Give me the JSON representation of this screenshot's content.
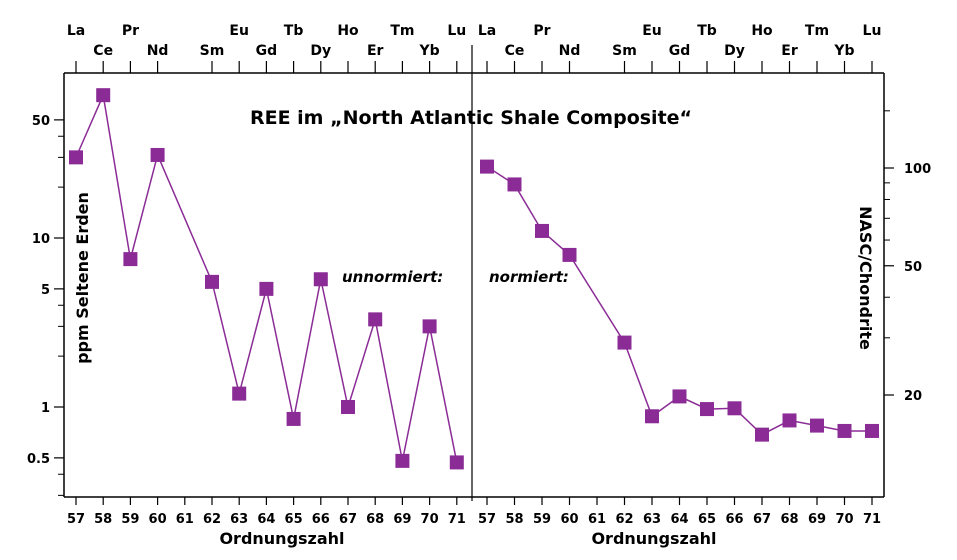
{
  "title": "REE im „North Atlantic Shale Composite“",
  "chart_data": [
    {
      "type": "line",
      "name": "left-panel",
      "annotation": "unnormiert:",
      "xlabel": "Ordnungszahl",
      "ylabel": "ppm Seltene Erden",
      "yscale": "log",
      "ylim": [
        0.25,
        100
      ],
      "yticks": [
        0.5,
        1,
        5,
        10,
        50
      ],
      "x_ticks": [
        "57",
        "58",
        "59",
        "60",
        "61",
        "62",
        "63",
        "64",
        "65",
        "66",
        "67",
        "68",
        "69",
        "70",
        "71"
      ],
      "element_labels": [
        "La",
        "Ce",
        "Pr",
        "Nd",
        "Sm",
        "Eu",
        "Gd",
        "Tb",
        "Dy",
        "Ho",
        "Er",
        "Tm",
        "Yb",
        "Lu"
      ],
      "element_z": [
        57,
        58,
        59,
        60,
        62,
        63,
        64,
        65,
        66,
        67,
        68,
        69,
        70,
        71
      ],
      "color": "#8b2c96",
      "points": [
        {
          "x": 57,
          "y": 30
        },
        {
          "x": 58,
          "y": 70
        },
        {
          "x": 59,
          "y": 7.5
        },
        {
          "x": 60,
          "y": 31
        },
        {
          "x": 62,
          "y": 5.5
        },
        {
          "x": 63,
          "y": 1.2
        },
        {
          "x": 64,
          "y": 5.0
        },
        {
          "x": 65,
          "y": 0.85
        },
        {
          "x": 66,
          "y": 5.7
        },
        {
          "x": 67,
          "y": 1.0
        },
        {
          "x": 68,
          "y": 3.3
        },
        {
          "x": 69,
          "y": 0.48
        },
        {
          "x": 70,
          "y": 3.0
        },
        {
          "x": 71,
          "y": 0.47
        }
      ]
    },
    {
      "type": "line",
      "name": "right-panel",
      "annotation": "normiert:",
      "xlabel": "Ordnungszahl",
      "ylabel": "NASC/Chondrite",
      "yscale": "log",
      "ylim": [
        10,
        200
      ],
      "yticks": [
        20,
        50,
        100
      ],
      "x_ticks": [
        "57",
        "58",
        "59",
        "60",
        "61",
        "62",
        "63",
        "64",
        "65",
        "66",
        "67",
        "68",
        "69",
        "70",
        "71"
      ],
      "element_labels": [
        "La",
        "Ce",
        "Pr",
        "Nd",
        "Sm",
        "Eu",
        "Gd",
        "Tb",
        "Dy",
        "Ho",
        "Er",
        "Tm",
        "Yb",
        "Lu"
      ],
      "element_z": [
        57,
        58,
        59,
        60,
        62,
        63,
        64,
        65,
        66,
        67,
        68,
        69,
        70,
        71
      ],
      "color": "#8b2c96",
      "points": [
        {
          "x": 57,
          "y": 101
        },
        {
          "x": 58,
          "y": 89
        },
        {
          "x": 59,
          "y": 64
        },
        {
          "x": 60,
          "y": 54
        },
        {
          "x": 62,
          "y": 29
        },
        {
          "x": 63,
          "y": 17.2
        },
        {
          "x": 64,
          "y": 19.8
        },
        {
          "x": 65,
          "y": 18.1
        },
        {
          "x": 66,
          "y": 18.2
        },
        {
          "x": 67,
          "y": 15.1
        },
        {
          "x": 68,
          "y": 16.7
        },
        {
          "x": 69,
          "y": 16.1
        },
        {
          "x": 70,
          "y": 15.5
        },
        {
          "x": 71,
          "y": 15.5
        }
      ]
    }
  ]
}
